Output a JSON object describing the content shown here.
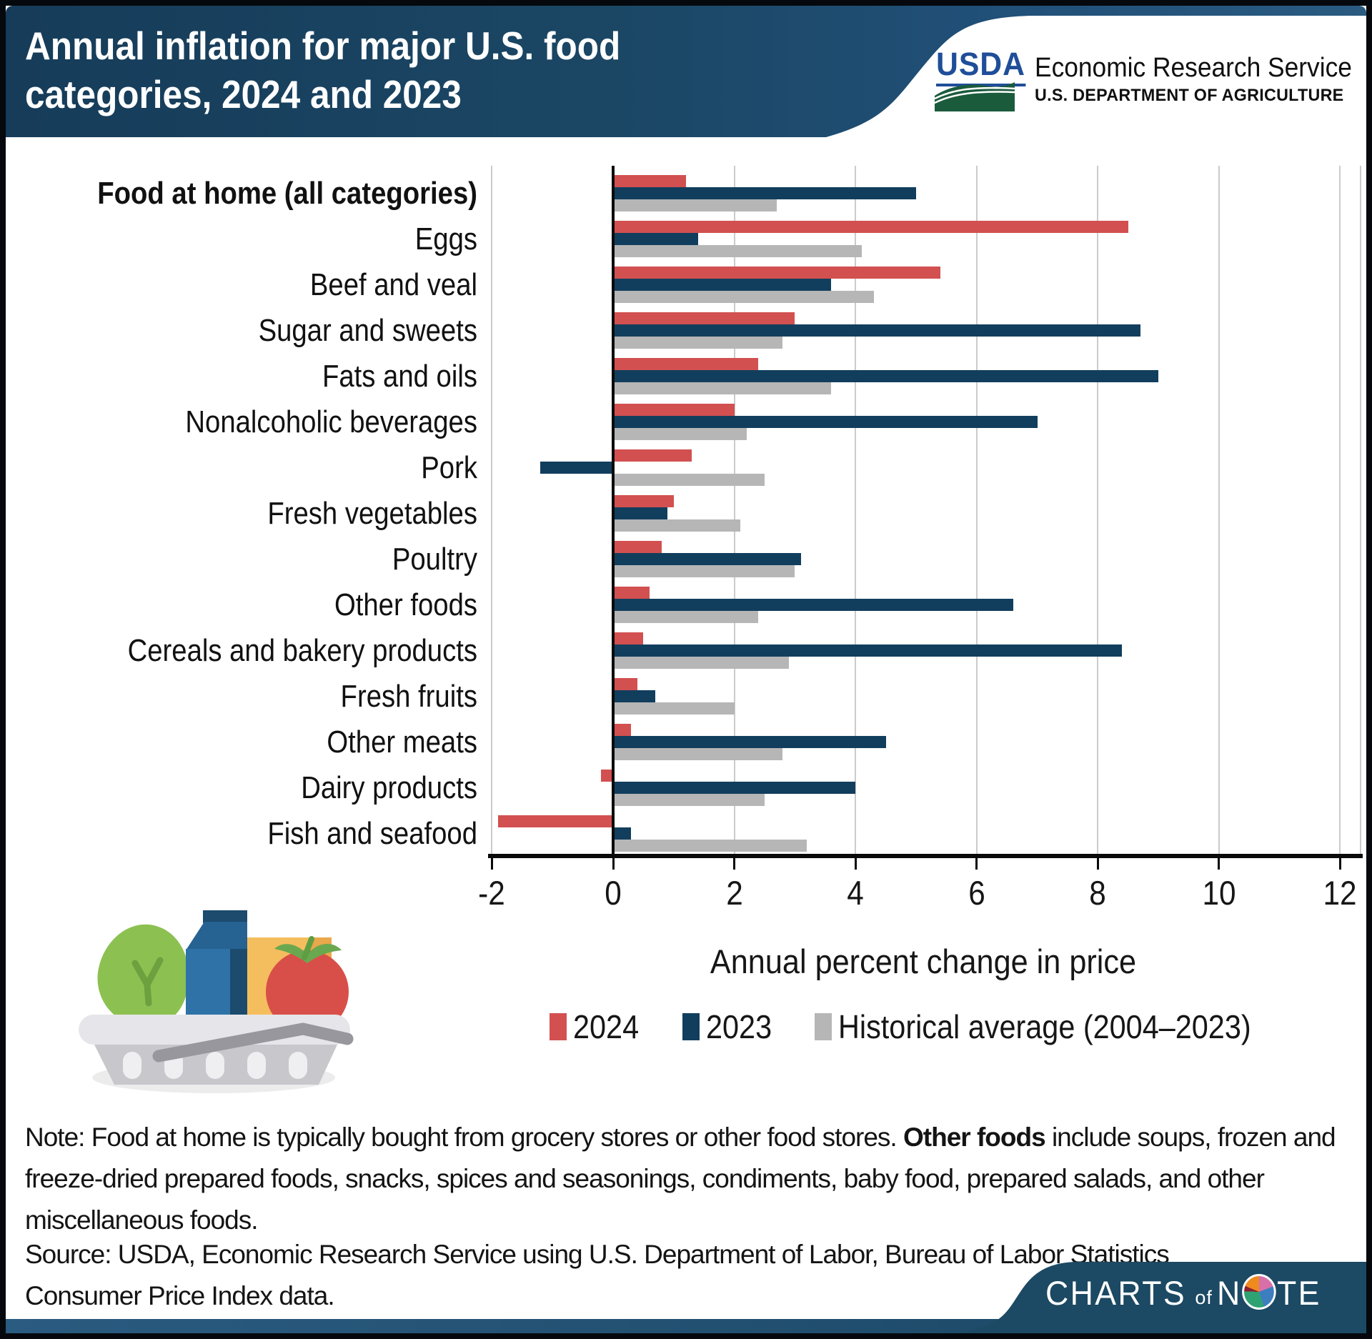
{
  "header": {
    "title_line1": "Annual inflation for major U.S. food",
    "title_line2": "categories, 2024 and 2023",
    "usda_logo_text": "USDA",
    "agency_name": "Economic Research Service",
    "department": "U.S. DEPARTMENT OF AGRICULTURE"
  },
  "chart_data": {
    "type": "bar",
    "orientation": "horizontal",
    "title": "Annual inflation for major U.S. food categories, 2024 and 2023",
    "xlabel": "Annual percent change in price",
    "xlim": [
      -2.1,
      12.4
    ],
    "xticks": [
      -2,
      0,
      2,
      4,
      6,
      8,
      10,
      12
    ],
    "grid": true,
    "legend_position": "bottom",
    "categories": [
      "Food at home (all categories)",
      "Eggs",
      "Beef and veal",
      "Sugar and sweets",
      "Fats and oils",
      "Nonalcoholic beverages",
      "Pork",
      "Fresh vegetables",
      "Poultry",
      "Other foods",
      "Cereals and bakery products",
      "Fresh fruits",
      "Other meats",
      "Dairy products",
      "Fish and seafood"
    ],
    "bold_category_index": 0,
    "series": [
      {
        "name": "2024",
        "color": "#d25050",
        "values": [
          1.2,
          8.5,
          5.4,
          3.0,
          2.4,
          2.0,
          1.3,
          1.0,
          0.8,
          0.6,
          0.5,
          0.4,
          0.3,
          -0.2,
          -1.9
        ]
      },
      {
        "name": "2023",
        "color": "#123e5d",
        "values": [
          5.0,
          1.4,
          3.6,
          8.7,
          9.0,
          7.0,
          -1.2,
          0.9,
          3.1,
          6.6,
          8.4,
          0.7,
          4.5,
          4.0,
          0.3
        ]
      },
      {
        "name": "Historical average (2004–2023)",
        "color": "#b6b6b6",
        "values": [
          2.7,
          4.1,
          4.3,
          2.8,
          3.6,
          2.2,
          2.5,
          2.1,
          3.0,
          2.4,
          2.9,
          2.0,
          2.8,
          2.5,
          3.2
        ]
      }
    ]
  },
  "legend": {
    "items": [
      {
        "label": "2024",
        "color": "#d25050"
      },
      {
        "label": "2023",
        "color": "#123e5d"
      },
      {
        "label": "Historical average (2004–2023)",
        "color": "#b6b6b6"
      }
    ]
  },
  "notes": {
    "note_prefix": "Note: Food at home is typically bought from grocery stores or other food stores. ",
    "note_bold": "Other foods",
    "note_suffix": " include soups, frozen and freeze-dried prepared foods, snacks, spices and seasonings, condiments, baby food, prepared salads, and other miscellaneous foods.",
    "source": "Source: USDA, Economic Research Service using U.S. Department of Labor, Bureau of Labor Statistics Consumer Price Index data."
  },
  "footer": {
    "brand_charts": "CHARTS",
    "brand_of": "of",
    "brand_note_n": "N",
    "brand_note_te": "TE"
  }
}
